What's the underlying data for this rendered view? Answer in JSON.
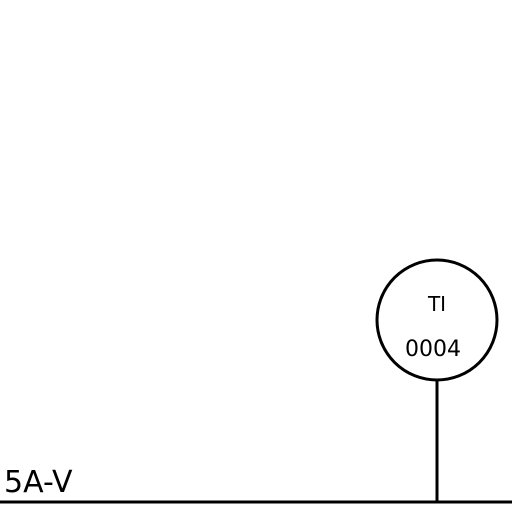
{
  "diagram": {
    "instrument": {
      "tag_letters": "TI",
      "tag_number": "0004"
    },
    "line_label": "5A-V"
  },
  "colors": {
    "background": "#ffffff",
    "ink": "#000000"
  }
}
